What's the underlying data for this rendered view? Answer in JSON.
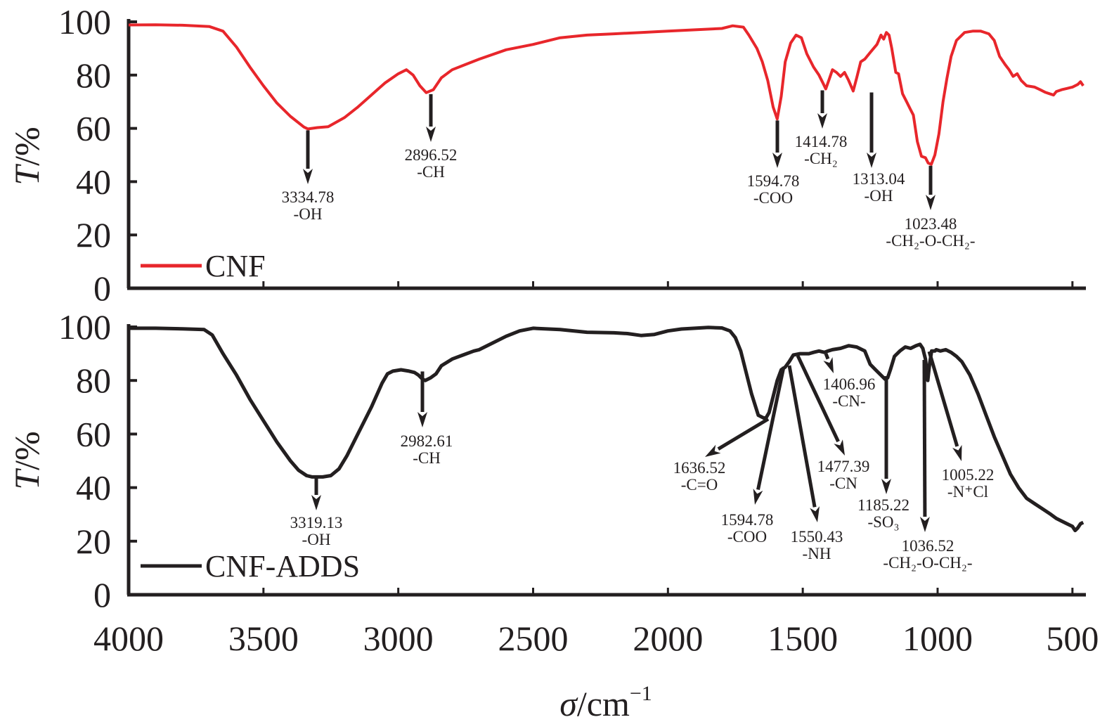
{
  "chart_data": [
    {
      "type": "line",
      "panel": "top",
      "title": "",
      "xlabel": "σ/cm⁻¹",
      "ylabel": "T/%",
      "xlim": [
        4000,
        450
      ],
      "ylim": [
        0,
        100
      ],
      "x_reversed": true,
      "xticks": [
        4000,
        3500,
        3000,
        2500,
        2000,
        1500,
        1000,
        500
      ],
      "yticks": [
        0,
        20,
        40,
        60,
        80,
        100
      ],
      "grid": false,
      "legend": {
        "position": "bottom-left",
        "entries": [
          {
            "name": "CNF",
            "color": "#e8262b"
          }
        ]
      },
      "series": [
        {
          "name": "CNF",
          "color": "#e8262b",
          "points": [
            [
              4000,
              98.8
            ],
            [
              3900,
              98.9
            ],
            [
              3800,
              98.7
            ],
            [
              3700,
              98.2
            ],
            [
              3650,
              96.5
            ],
            [
              3600,
              90.5
            ],
            [
              3550,
              83
            ],
            [
              3500,
              76
            ],
            [
              3450,
              69.5
            ],
            [
              3400,
              64.5
            ],
            [
              3350,
              60.5
            ],
            [
              3334.78,
              59.8
            ],
            [
              3300,
              60.3
            ],
            [
              3260,
              60.6
            ],
            [
              3200,
              64
            ],
            [
              3150,
              68
            ],
            [
              3100,
              72.5
            ],
            [
              3050,
              77
            ],
            [
              3000,
              80.5
            ],
            [
              2970,
              82
            ],
            [
              2945,
              80
            ],
            [
              2920,
              76
            ],
            [
              2896.52,
              73.4
            ],
            [
              2870,
              74.5
            ],
            [
              2840,
              79
            ],
            [
              2800,
              82
            ],
            [
              2750,
              84
            ],
            [
              2700,
              86
            ],
            [
              2600,
              89.5
            ],
            [
              2500,
              91.5
            ],
            [
              2400,
              94
            ],
            [
              2300,
              95
            ],
            [
              2200,
              95.5
            ],
            [
              2100,
              96
            ],
            [
              2000,
              96.5
            ],
            [
              1900,
              97
            ],
            [
              1800,
              97.5
            ],
            [
              1760,
              98.5
            ],
            [
              1720,
              98
            ],
            [
              1700,
              95
            ],
            [
              1670,
              90
            ],
            [
              1650,
              85
            ],
            [
              1630,
              78
            ],
            [
              1610,
              68
            ],
            [
              1594.78,
              63.5
            ],
            [
              1580,
              72
            ],
            [
              1565,
              85
            ],
            [
              1545,
              92
            ],
            [
              1525,
              95
            ],
            [
              1505,
              94
            ],
            [
              1485,
              88
            ],
            [
              1460,
              83
            ],
            [
              1440,
              80
            ],
            [
              1425,
              77
            ],
            [
              1414.78,
              74.8
            ],
            [
              1400,
              79
            ],
            [
              1390,
              82
            ],
            [
              1375,
              81
            ],
            [
              1360,
              79.5
            ],
            [
              1345,
              81
            ],
            [
              1330,
              78
            ],
            [
              1313.04,
              74
            ],
            [
              1300,
              79
            ],
            [
              1285,
              85
            ],
            [
              1270,
              86
            ],
            [
              1250,
              88.5
            ],
            [
              1225,
              91.5
            ],
            [
              1210,
              95
            ],
            [
              1200,
              93.5
            ],
            [
              1190,
              96
            ],
            [
              1180,
              95
            ],
            [
              1170,
              90
            ],
            [
              1155,
              81
            ],
            [
              1145,
              80.5
            ],
            [
              1130,
              73
            ],
            [
              1115,
              70
            ],
            [
              1100,
              67
            ],
            [
              1090,
              65
            ],
            [
              1075,
              55
            ],
            [
              1060,
              49.5
            ],
            [
              1045,
              49
            ],
            [
              1035,
              47
            ],
            [
              1023.48,
              46.5
            ],
            [
              1010,
              50
            ],
            [
              995,
              58
            ],
            [
              980,
              70
            ],
            [
              965,
              79
            ],
            [
              950,
              87
            ],
            [
              930,
              93
            ],
            [
              900,
              96
            ],
            [
              870,
              96.5
            ],
            [
              840,
              96.5
            ],
            [
              810,
              95.5
            ],
            [
              790,
              93
            ],
            [
              770,
              87
            ],
            [
              750,
              84
            ],
            [
              735,
              82
            ],
            [
              720,
              79.5
            ],
            [
              705,
              80.5
            ],
            [
              690,
              78
            ],
            [
              670,
              76
            ],
            [
              640,
              75.5
            ],
            [
              620,
              74.5
            ],
            [
              600,
              73.5
            ],
            [
              585,
              73
            ],
            [
              570,
              72.5
            ],
            [
              560,
              73.8
            ],
            [
              540,
              74.5
            ],
            [
              520,
              75
            ],
            [
              500,
              75.5
            ],
            [
              480,
              76.5
            ],
            [
              470,
              77.5
            ],
            [
              460,
              76
            ]
          ]
        }
      ],
      "annotations": [
        {
          "x": 3334.78,
          "value": "3334.78",
          "group": "-OH"
        },
        {
          "x": 2896.52,
          "value": "2896.52",
          "group": "-CH"
        },
        {
          "x": 1594.78,
          "value": "1594.78",
          "group": "-COO"
        },
        {
          "x": 1414.78,
          "value": "1414.78",
          "group": "-CH₂"
        },
        {
          "x": 1313.04,
          "value": "1313.04",
          "group": "-OH"
        },
        {
          "x": 1023.48,
          "value": "1023.48",
          "group": "-CH₂-O-CH₂-"
        }
      ]
    },
    {
      "type": "line",
      "panel": "bottom",
      "title": "",
      "xlabel": "σ/cm⁻¹",
      "ylabel": "T/%",
      "xlim": [
        4000,
        450
      ],
      "ylim": [
        0,
        100
      ],
      "x_reversed": true,
      "xticks": [
        4000,
        3500,
        3000,
        2500,
        2000,
        1500,
        1000,
        500
      ],
      "yticks": [
        0,
        20,
        40,
        60,
        80,
        100
      ],
      "grid": false,
      "legend": {
        "position": "bottom-left",
        "entries": [
          {
            "name": "CNF-ADDS",
            "color": "#231f20"
          }
        ]
      },
      "series": [
        {
          "name": "CNF-ADDS",
          "color": "#231f20",
          "points": [
            [
              4000,
              99.5
            ],
            [
              3900,
              99.5
            ],
            [
              3800,
              99.3
            ],
            [
              3720,
              99
            ],
            [
              3690,
              97
            ],
            [
              3650,
              90
            ],
            [
              3600,
              82
            ],
            [
              3550,
              73
            ],
            [
              3500,
              65
            ],
            [
              3450,
              57
            ],
            [
              3400,
              50
            ],
            [
              3370,
              46.5
            ],
            [
              3340,
              44.5
            ],
            [
              3319.13,
              44
            ],
            [
              3280,
              44
            ],
            [
              3250,
              44.5
            ],
            [
              3220,
              47
            ],
            [
              3190,
              52
            ],
            [
              3150,
              60
            ],
            [
              3100,
              70
            ],
            [
              3060,
              79
            ],
            [
              3040,
              82.5
            ],
            [
              3020,
              83.5
            ],
            [
              2990,
              84
            ],
            [
              2960,
              83.5
            ],
            [
              2940,
              83
            ],
            [
              2925,
              82
            ],
            [
              2910,
              80.5
            ],
            [
              2900,
              80
            ],
            [
              2880,
              81
            ],
            [
              2860,
              82.5
            ],
            [
              2840,
              85.5
            ],
            [
              2800,
              88
            ],
            [
              2760,
              89.5
            ],
            [
              2720,
              91
            ],
            [
              2700,
              91.5
            ],
            [
              2650,
              94
            ],
            [
              2600,
              96.5
            ],
            [
              2550,
              98.5
            ],
            [
              2500,
              99.5
            ],
            [
              2400,
              99
            ],
            [
              2300,
              98
            ],
            [
              2200,
              97.8
            ],
            [
              2150,
              97.5
            ],
            [
              2100,
              96.8
            ],
            [
              2050,
              97.2
            ],
            [
              2000,
              98.5
            ],
            [
              1950,
              99.2
            ],
            [
              1900,
              99.5
            ],
            [
              1850,
              99.8
            ],
            [
              1800,
              99.6
            ],
            [
              1770,
              98.5
            ],
            [
              1750,
              96
            ],
            [
              1730,
              91
            ],
            [
              1710,
              83
            ],
            [
              1690,
              75
            ],
            [
              1665,
              67
            ],
            [
              1645,
              66
            ],
            [
              1636.52,
              66
            ],
            [
              1625,
              68
            ],
            [
              1610,
              74
            ],
            [
              1594.78,
              80
            ],
            [
              1580,
              84
            ],
            [
              1565,
              85
            ],
            [
              1550.43,
              87
            ],
            [
              1535,
              89.5
            ],
            [
              1510,
              90
            ],
            [
              1490,
              90
            ],
            [
              1477.39,
              90
            ],
            [
              1460,
              90.5
            ],
            [
              1440,
              91
            ],
            [
              1420,
              90.5
            ],
            [
              1406.96,
              91
            ],
            [
              1390,
              91.5
            ],
            [
              1360,
              92
            ],
            [
              1330,
              93
            ],
            [
              1300,
              92.5
            ],
            [
              1270,
              91
            ],
            [
              1250,
              86
            ],
            [
              1230,
              84
            ],
            [
              1210,
              82
            ],
            [
              1195,
              80.5
            ],
            [
              1185.22,
              81
            ],
            [
              1175,
              84
            ],
            [
              1160,
              89
            ],
            [
              1140,
              91
            ],
            [
              1120,
              92.5
            ],
            [
              1100,
              92
            ],
            [
              1080,
              93
            ],
            [
              1065,
              93.5
            ],
            [
              1055,
              92
            ],
            [
              1045,
              88
            ],
            [
              1036.52,
              80
            ],
            [
              1030,
              86
            ],
            [
              1022,
              91
            ],
            [
              1010,
              91
            ],
            [
              1005.22,
              91.5
            ],
            [
              990,
              91
            ],
            [
              970,
              91.5
            ],
            [
              950,
              90.5
            ],
            [
              930,
              89
            ],
            [
              910,
              87
            ],
            [
              880,
              82
            ],
            [
              850,
              75
            ],
            [
              820,
              67
            ],
            [
              790,
              59
            ],
            [
              760,
              52
            ],
            [
              730,
              45
            ],
            [
              700,
              40
            ],
            [
              670,
              36
            ],
            [
              640,
              34
            ],
            [
              610,
              32
            ],
            [
              580,
              30
            ],
            [
              560,
              28.5
            ],
            [
              540,
              27.5
            ],
            [
              520,
              26.5
            ],
            [
              500,
              25.5
            ],
            [
              490,
              24
            ],
            [
              480,
              25
            ],
            [
              470,
              26.5
            ],
            [
              460,
              27
            ]
          ]
        }
      ],
      "annotations": [
        {
          "x": 3319.13,
          "value": "3319.13",
          "group": "-OH"
        },
        {
          "x": 2982.61,
          "value": "2982.61",
          "group": "-CH"
        },
        {
          "x": 1636.52,
          "value": "1636.52",
          "group": "-C=O"
        },
        {
          "x": 1594.78,
          "value": "1594.78",
          "group": "-COO"
        },
        {
          "x": 1550.43,
          "value": "1550.43",
          "group": "-NH"
        },
        {
          "x": 1477.39,
          "value": "1477.39",
          "group": "-CN"
        },
        {
          "x": 1406.96,
          "value": "1406.96",
          "group": "-CN-"
        },
        {
          "x": 1185.22,
          "value": "1185.22",
          "group": "-SO₃"
        },
        {
          "x": 1036.52,
          "value": "1036.52",
          "group": "-CH₂-O-CH₂-"
        },
        {
          "x": 1005.22,
          "value": "1005.22",
          "group": "-N⁺Cl"
        }
      ]
    }
  ],
  "axis_labels": {
    "y_italic": "T",
    "y_rest": "/%",
    "x_italic": "σ",
    "x_rest": "/cm",
    "x_sup": "−1"
  }
}
